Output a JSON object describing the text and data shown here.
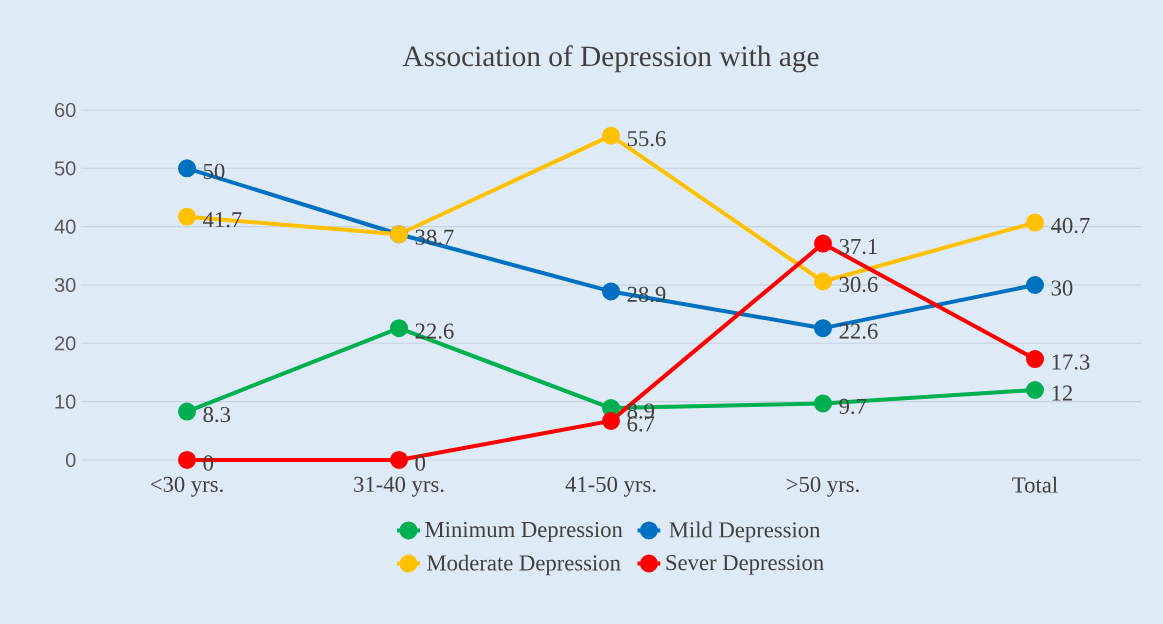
{
  "chart_data": {
    "type": "line",
    "title": "Association of Depression with age",
    "categories": [
      "<30 yrs.",
      "31-40 yrs.",
      "41-50 yrs.",
      ">50 yrs.",
      "Total"
    ],
    "series": [
      {
        "name": "Minimum Depression",
        "color": "#00b050",
        "values": [
          8.3,
          22.6,
          8.9,
          9.7,
          12
        ],
        "value_labels": [
          "8.3",
          "22.6",
          "8.9",
          "9.7",
          "12"
        ]
      },
      {
        "name": "Mild Depression",
        "color": "#0070c0",
        "values": [
          50,
          38.7,
          28.9,
          22.6,
          30
        ],
        "value_labels": [
          "50",
          "38.7",
          "28.9",
          "22.6",
          "30"
        ]
      },
      {
        "name": "Moderate Depression",
        "color": "#ffc000",
        "values": [
          41.7,
          38.7,
          55.6,
          30.6,
          40.7
        ],
        "value_labels": [
          "41.7",
          null,
          "55.6",
          "30.6",
          "40.7"
        ]
      },
      {
        "name": "Sever Depression",
        "color": "#ff0000",
        "values": [
          0,
          0,
          6.7,
          37.1,
          17.3
        ],
        "value_labels": [
          "0",
          "0",
          "6.7",
          "37.1",
          "17.3"
        ]
      }
    ],
    "ylim": [
      0,
      60
    ],
    "yticks": [
      0,
      10,
      20,
      30,
      40,
      50,
      60
    ],
    "grid": "y",
    "legend": "bottom",
    "marker": "circle"
  }
}
